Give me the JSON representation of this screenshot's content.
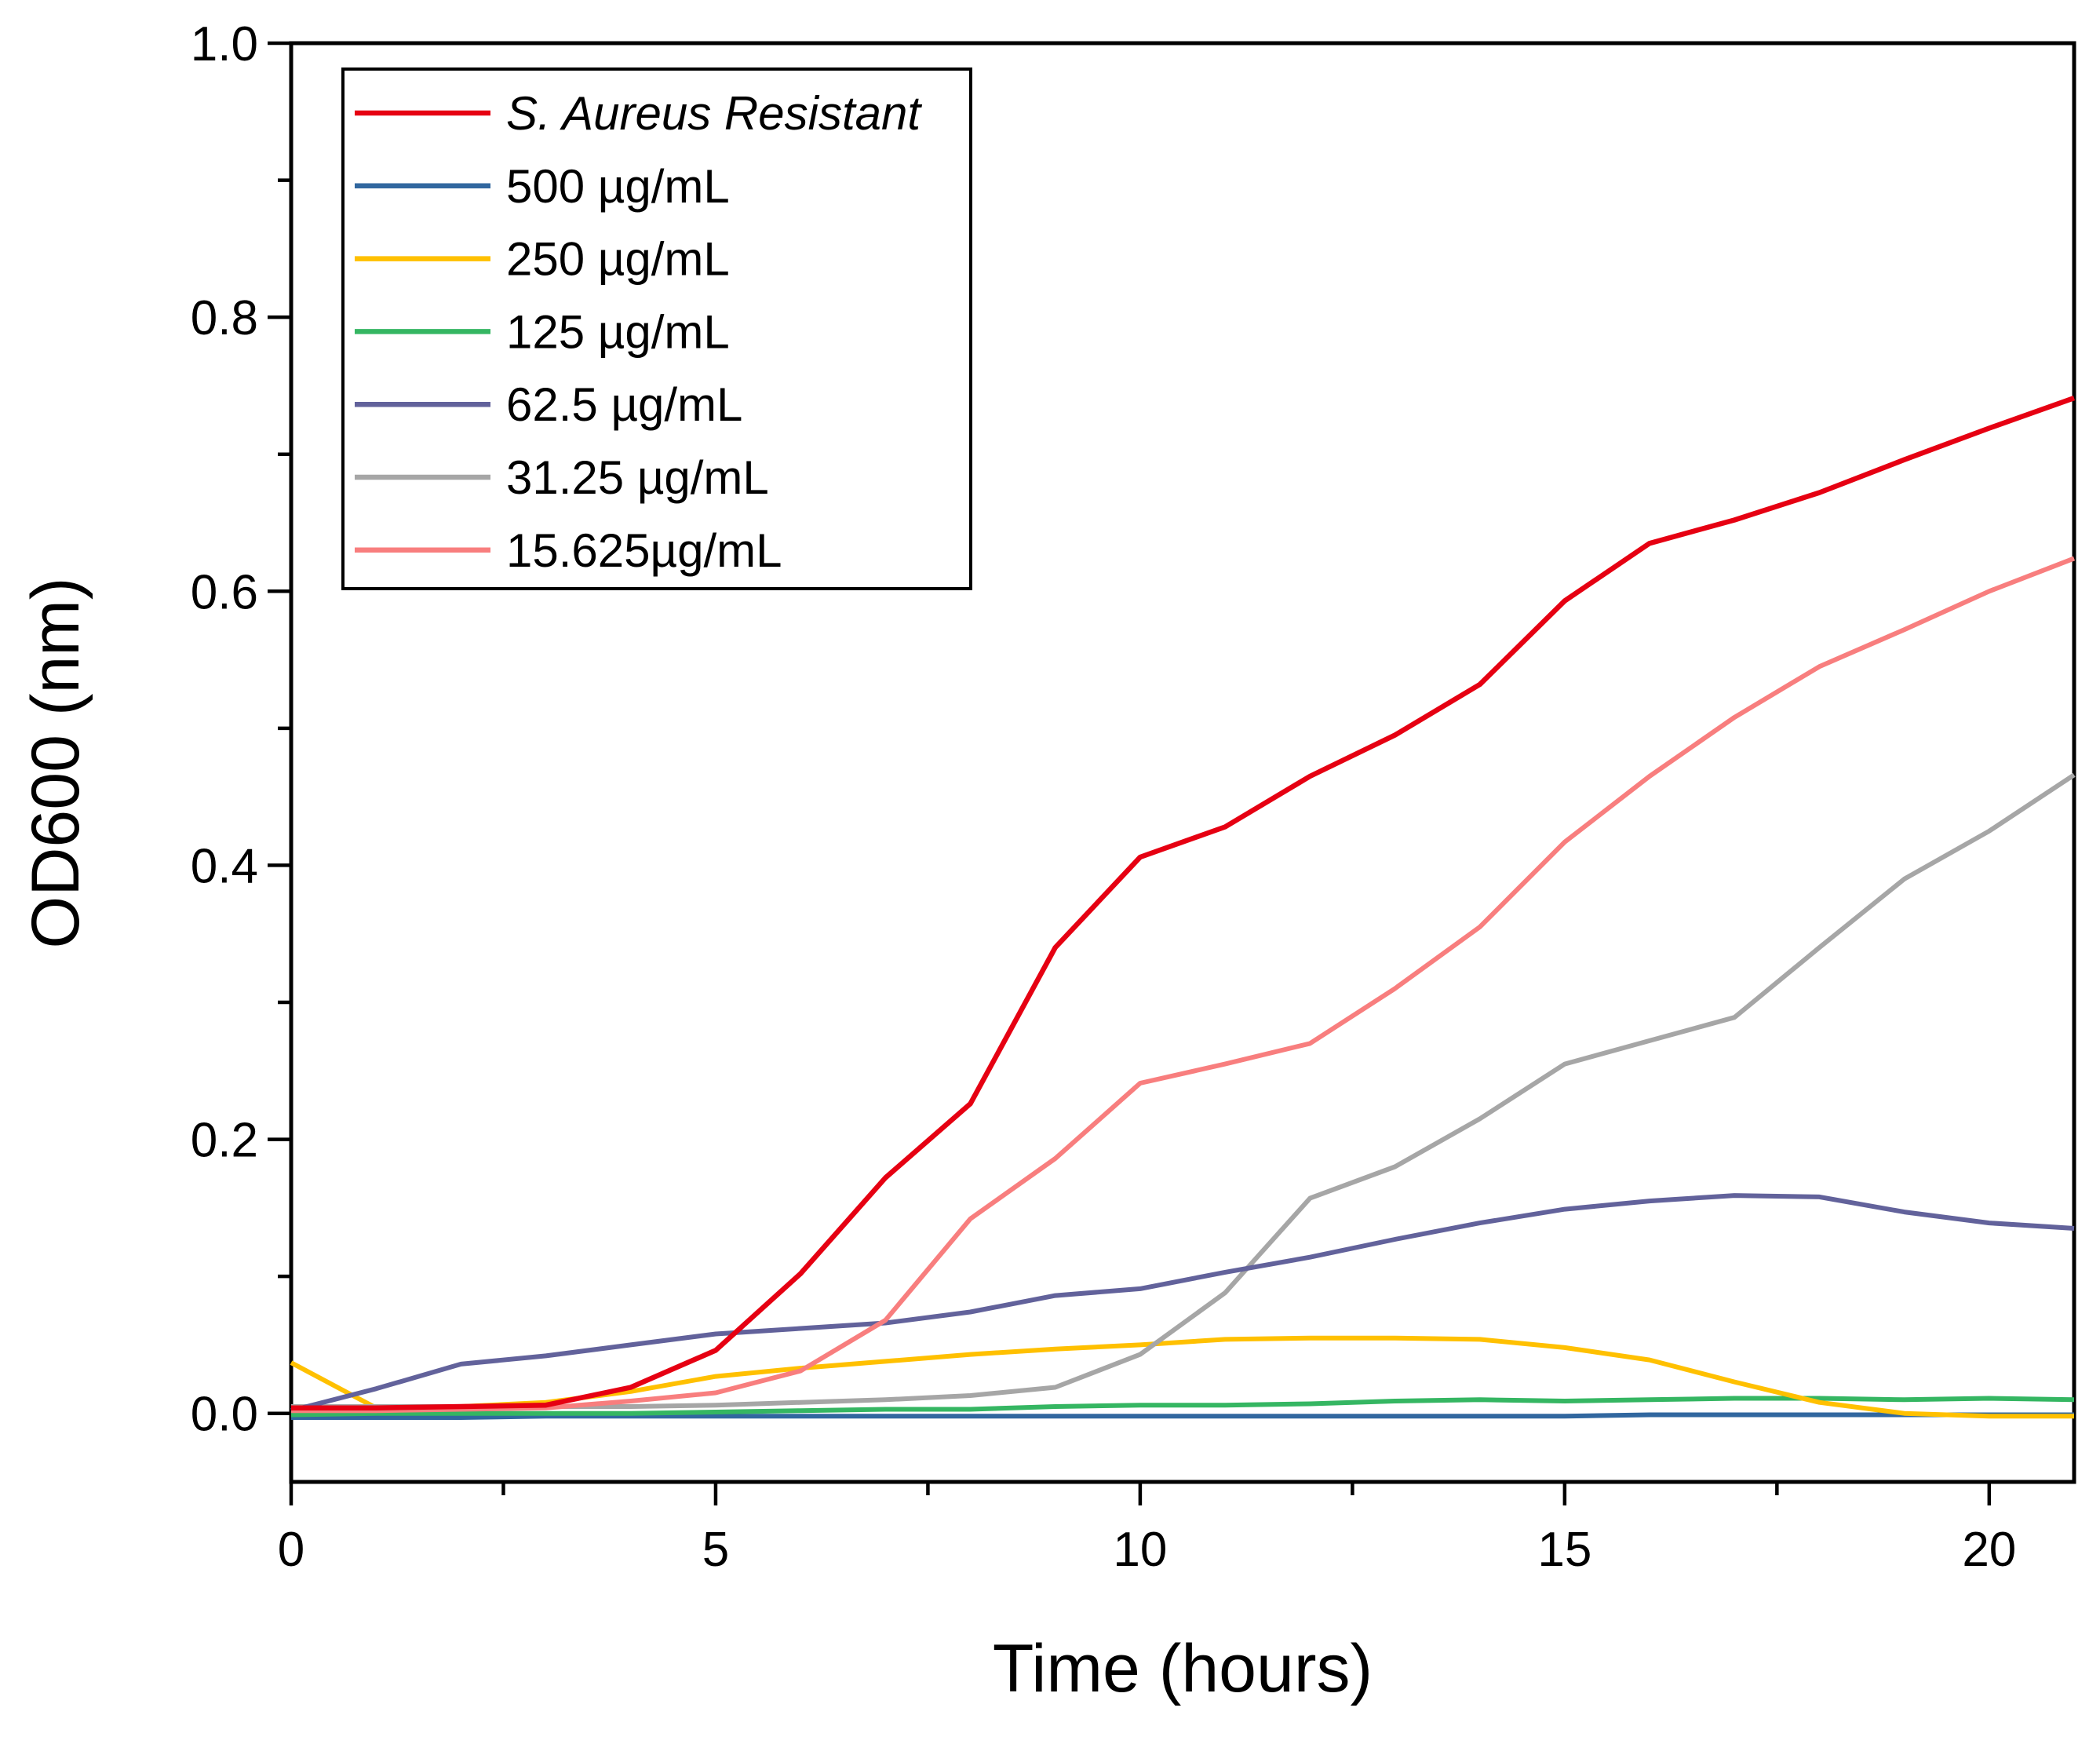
{
  "figure": {
    "background_color": "#ffffff",
    "frame_color": "#000000"
  },
  "chart_data": {
    "type": "line",
    "title": "",
    "xlabel": "Time (hours)",
    "ylabel": "OD600 (nm)",
    "xlim": [
      0,
      21
    ],
    "ylim": [
      -0.05,
      1.0
    ],
    "grid": false,
    "legend_position": "top-left-inside",
    "x_major_ticks": [
      0,
      5,
      10,
      15,
      20
    ],
    "x_tick_labels": [
      "0",
      "5",
      "10",
      "15",
      "20"
    ],
    "x_minor_ticks": [
      2.5,
      7.5,
      12.5,
      17.5
    ],
    "y_major_ticks": [
      0.0,
      0.2,
      0.4,
      0.6,
      0.8,
      1.0
    ],
    "y_tick_labels": [
      "0.0",
      "0.2",
      "0.4",
      "0.6",
      "0.8",
      "1.0"
    ],
    "y_minor_ticks": [
      0.1,
      0.3,
      0.5,
      0.7,
      0.9
    ],
    "x": [
      0,
      1,
      2,
      3,
      4,
      5,
      6,
      7,
      8,
      9,
      10,
      11,
      12,
      13,
      14,
      15,
      16,
      17,
      18,
      19,
      20,
      21
    ],
    "series": [
      {
        "name": "S. Aureus Resistant",
        "key": "s-aureus-resistant",
        "color": "#e60012",
        "italic": true,
        "line_width": 6.5,
        "values": [
          0.004,
          0.004,
          0.005,
          0.006,
          0.019,
          0.046,
          0.102,
          0.172,
          0.226,
          0.34,
          0.406,
          0.428,
          0.465,
          0.495,
          0.532,
          0.593,
          0.635,
          0.652,
          0.672,
          0.696,
          0.719,
          0.741
        ]
      },
      {
        "name": "500 µg/mL",
        "key": "500-ug-ml",
        "color": "#31679f",
        "italic": false,
        "line_width": 6,
        "values": [
          -0.003,
          -0.003,
          -0.003,
          -0.002,
          -0.002,
          -0.002,
          -0.002,
          -0.002,
          -0.002,
          -0.002,
          -0.002,
          -0.002,
          -0.002,
          -0.002,
          -0.002,
          -0.002,
          -0.001,
          -0.001,
          -0.001,
          -0.001,
          -0.001,
          -0.001
        ]
      },
      {
        "name": "250 µg/mL",
        "key": "250-ug-ml",
        "color": "#ffc000",
        "italic": false,
        "line_width": 6,
        "values": [
          0.037,
          0.004,
          0.005,
          0.008,
          0.016,
          0.027,
          0.033,
          0.038,
          0.043,
          0.047,
          0.05,
          0.054,
          0.055,
          0.055,
          0.054,
          0.048,
          0.039,
          0.023,
          0.008,
          0.0,
          -0.002,
          -0.002
        ]
      },
      {
        "name": "125 µg/mL",
        "key": "125-ug-ml",
        "color": "#35b662",
        "italic": false,
        "line_width": 6,
        "values": [
          -0.001,
          0.0,
          0.0,
          0.0,
          0.0,
          0.001,
          0.002,
          0.003,
          0.003,
          0.005,
          0.006,
          0.006,
          0.007,
          0.009,
          0.01,
          0.009,
          0.01,
          0.011,
          0.011,
          0.01,
          0.011,
          0.01
        ]
      },
      {
        "name": "62.5 µg/mL",
        "key": "62-5-ug-ml",
        "color": "#62629b",
        "italic": false,
        "line_width": 6,
        "values": [
          0.002,
          0.018,
          0.036,
          0.042,
          0.05,
          0.058,
          0.062,
          0.066,
          0.074,
          0.086,
          0.091,
          0.103,
          0.114,
          0.127,
          0.139,
          0.149,
          0.155,
          0.159,
          0.158,
          0.147,
          0.139,
          0.135
        ]
      },
      {
        "name": "31.25 µg/mL",
        "key": "31-25-ug-ml",
        "color": "#a6a6a6",
        "italic": false,
        "line_width": 6,
        "values": [
          0.005,
          0.005,
          0.005,
          0.005,
          0.005,
          0.006,
          0.008,
          0.01,
          0.013,
          0.019,
          0.043,
          0.088,
          0.157,
          0.18,
          0.215,
          0.255,
          0.272,
          0.289,
          0.34,
          0.39,
          0.425,
          0.466
        ]
      },
      {
        "name": "15.625µg/mL",
        "key": "15-625-ug-ml",
        "color": "#f87e7e",
        "italic": false,
        "line_width": 6,
        "values": [
          0.002,
          0.002,
          0.003,
          0.004,
          0.009,
          0.015,
          0.031,
          0.068,
          0.142,
          0.186,
          0.241,
          0.255,
          0.27,
          0.31,
          0.355,
          0.417,
          0.465,
          0.508,
          0.545,
          0.572,
          0.6,
          0.624
        ]
      }
    ]
  },
  "legend": {
    "border_color": "#000000",
    "background_color": "#ffffff"
  }
}
